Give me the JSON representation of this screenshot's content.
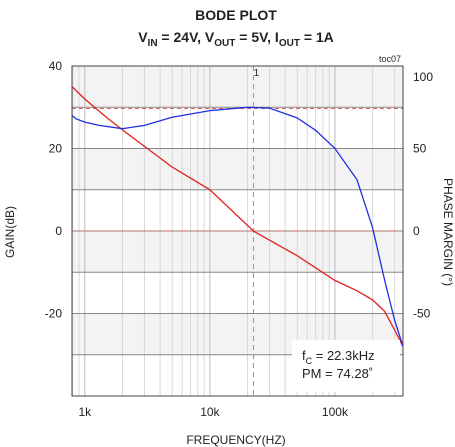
{
  "chart_data": {
    "type": "line",
    "title": "BODE PLOT",
    "subtitle": [
      "V",
      "IN",
      " = 24V, V",
      "OUT",
      " = 5V, I",
      "OUT",
      " = 1A"
    ],
    "corner_label": "toc07",
    "xlabel": "FREQUENCY(HZ)",
    "ylabel": "GAIN(dB)",
    "y2label": "PHASE MARGIN (°)",
    "log_x": true,
    "xlim": [
      790,
      350000
    ],
    "xticks": [
      {
        "value": 1000,
        "label": "1k"
      },
      {
        "value": 10000,
        "label": "10k"
      },
      {
        "value": 100000,
        "label": "100k"
      }
    ],
    "xgrid": [
      800,
      900,
      2000,
      3000,
      4000,
      5000,
      6000,
      7000,
      8000,
      9000,
      20000,
      30000,
      40000,
      50000,
      60000,
      70000,
      80000,
      90000,
      200000,
      300000
    ],
    "ylim": [
      -40,
      40
    ],
    "yticks": [
      -20,
      0,
      20,
      40
    ],
    "ygrid": [
      -30,
      -20,
      -10,
      0,
      10,
      20,
      30
    ],
    "y2lim": [
      -100,
      100
    ],
    "y2ticks": [
      -50,
      0,
      50,
      100
    ],
    "marker": {
      "label": "1",
      "x": 22300
    },
    "reference_lines": [
      {
        "axis": "y",
        "value": 0
      },
      {
        "axis": "y2",
        "value": 74.28
      }
    ],
    "annotation": [
      [
        "f",
        "C",
        " = 22.3kHz"
      ],
      [
        "PM = 74.28˚"
      ]
    ],
    "series": [
      {
        "name": "Gain",
        "color": "#e02020",
        "axis": "y",
        "x": [
          790,
          1000,
          1500,
          2000,
          3000,
          5000,
          10000,
          22300,
          50000,
          100000,
          150000,
          200000,
          250000,
          300000,
          350000
        ],
        "values": [
          35,
          32,
          27.5,
          24.5,
          20.5,
          15.5,
          10,
          0,
          -6,
          -12,
          -14.5,
          -16.7,
          -19.5,
          -24,
          -28
        ]
      },
      {
        "name": "Phase",
        "color": "#2030e0",
        "axis": "y2",
        "x": [
          790,
          850,
          1000,
          1300,
          2000,
          3000,
          5000,
          10000,
          20000,
          30000,
          50000,
          70000,
          100000,
          150000,
          200000,
          250000,
          300000,
          350000
        ],
        "values": [
          70,
          68,
          66,
          64,
          62,
          64,
          69,
          73,
          75,
          74.5,
          68.5,
          61,
          50,
          31,
          2,
          -30,
          -54,
          -70
        ]
      }
    ]
  }
}
